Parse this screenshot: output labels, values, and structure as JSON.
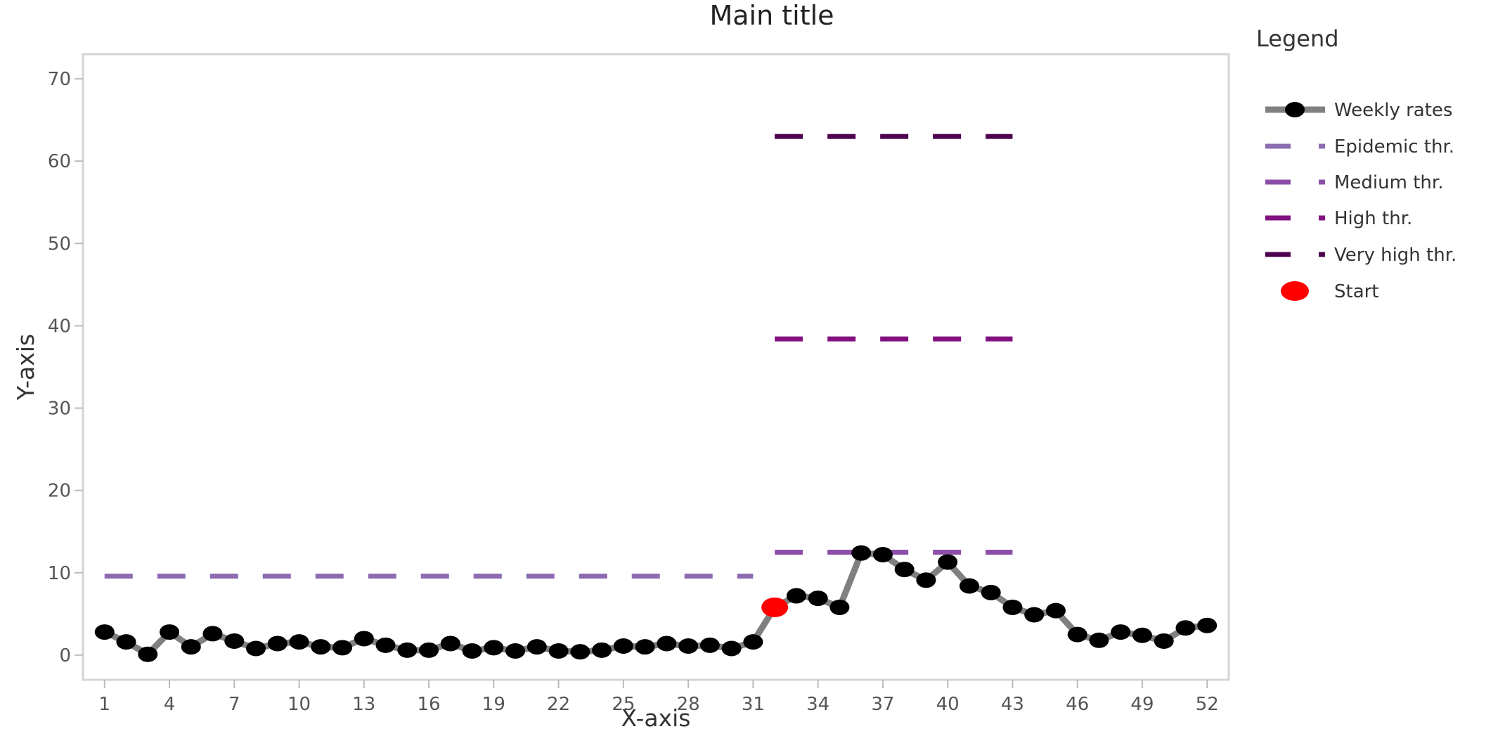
{
  "chart_data": {
    "type": "line",
    "title": "Main title",
    "xlabel": "X-axis",
    "ylabel": "Y-axis",
    "xlim": [
      0,
      53
    ],
    "ylim": [
      -3,
      73
    ],
    "x_ticks": [
      1,
      4,
      7,
      10,
      13,
      16,
      19,
      22,
      25,
      28,
      31,
      34,
      37,
      40,
      43,
      46,
      49,
      52
    ],
    "y_ticks": [
      0,
      10,
      20,
      30,
      40,
      50,
      60,
      70
    ],
    "grid": false,
    "legend_title": "Legend",
    "legend_placement": "right",
    "series": [
      {
        "name": "Weekly rates",
        "color": "#000000",
        "line_color": "#808080",
        "x": [
          1,
          2,
          3,
          4,
          5,
          6,
          7,
          8,
          9,
          10,
          11,
          12,
          13,
          14,
          15,
          16,
          17,
          18,
          19,
          20,
          21,
          22,
          23,
          24,
          25,
          26,
          27,
          28,
          29,
          30,
          31,
          32,
          33,
          34,
          35,
          36,
          37,
          38,
          39,
          40,
          41,
          42,
          43,
          44,
          45,
          46,
          47,
          48,
          49,
          50,
          51,
          52
        ],
        "values": [
          2.8,
          1.6,
          0.1,
          2.8,
          1.0,
          2.6,
          1.7,
          0.8,
          1.4,
          1.6,
          1.0,
          0.9,
          2.0,
          1.2,
          0.6,
          0.6,
          1.4,
          0.5,
          0.9,
          0.5,
          1.0,
          0.5,
          0.4,
          0.6,
          1.1,
          1.0,
          1.4,
          1.1,
          1.2,
          0.8,
          1.6,
          5.8,
          7.2,
          6.9,
          5.8,
          12.4,
          12.2,
          10.4,
          9.1,
          11.3,
          8.4,
          7.6,
          5.8,
          4.9,
          5.4,
          2.5,
          1.8,
          2.8,
          2.4,
          1.7,
          3.3,
          3.6
        ]
      },
      {
        "name": "Epidemic thr.",
        "color": "#8c6bb1",
        "x_range": [
          1,
          31
        ],
        "value": 9.6
      },
      {
        "name": "Medium thr.",
        "color": "#8c4fa8",
        "x_range": [
          32,
          43
        ],
        "value": 12.5
      },
      {
        "name": "High thr.",
        "color": "#81127f",
        "x_range": [
          32,
          43
        ],
        "value": 38.4
      },
      {
        "name": "Very high thr.",
        "color": "#4d004b",
        "x_range": [
          32,
          43
        ],
        "value": 63.0
      },
      {
        "name": "Start",
        "color": "#ff0000",
        "x": [
          32
        ],
        "values": [
          5.8
        ]
      }
    ]
  }
}
